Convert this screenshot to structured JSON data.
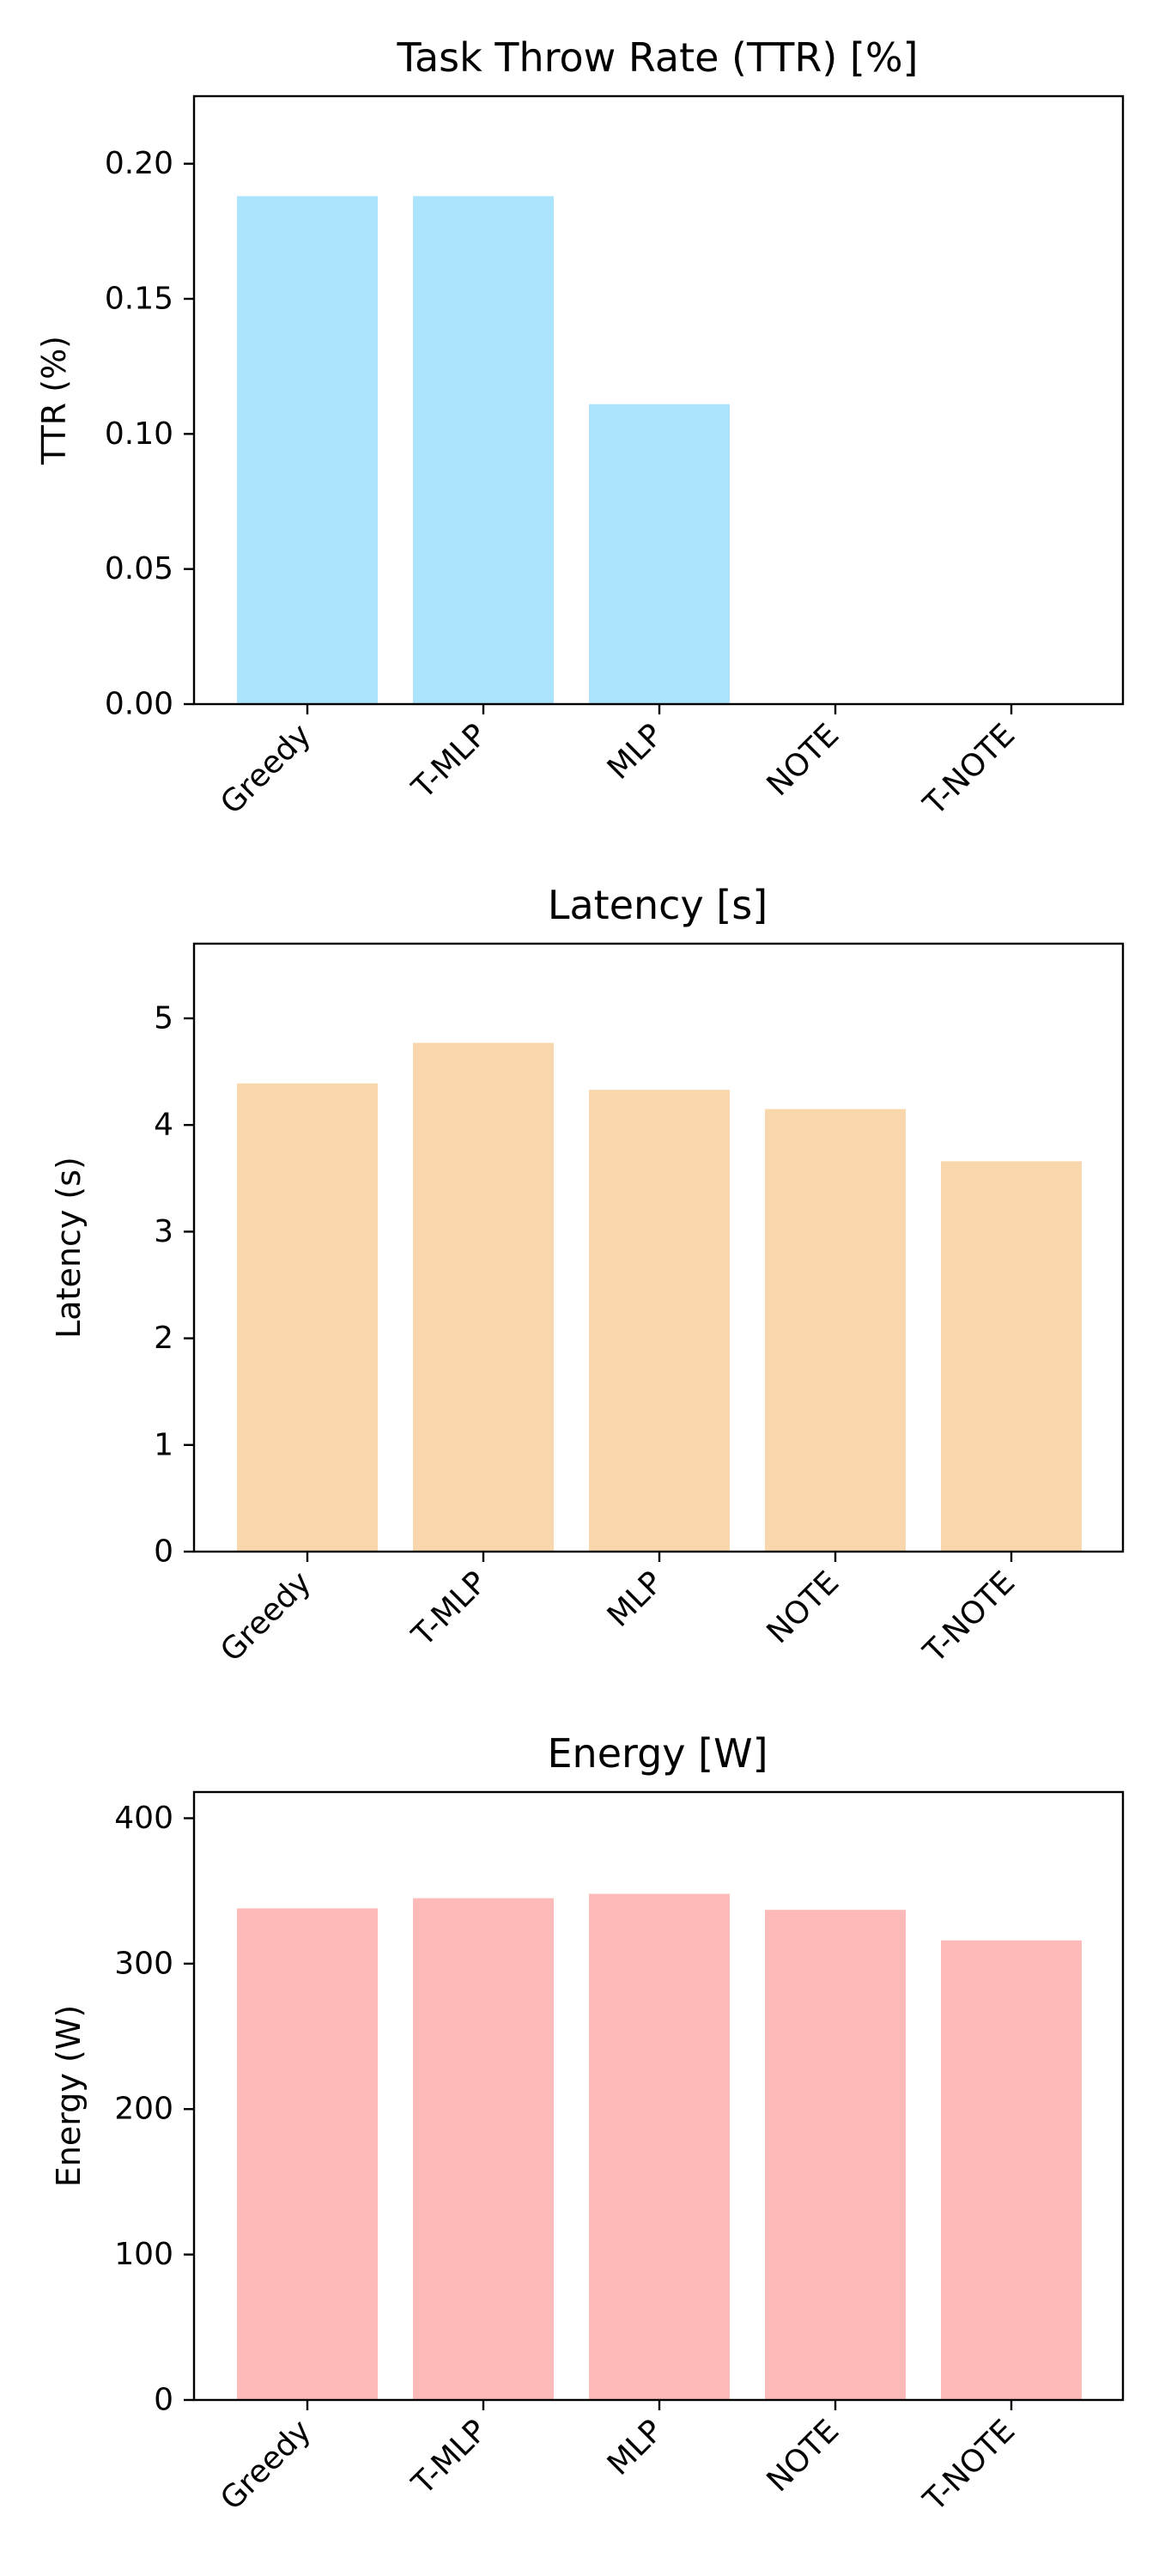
{
  "chart_data": [
    {
      "type": "bar",
      "title": "Task Throw Rate (TTR) [%]",
      "xlabel": "",
      "ylabel": "TTR (%)",
      "categories": [
        "Greedy",
        "T-MLP",
        "MLP",
        "NOTE",
        "T-NOTE"
      ],
      "values": [
        0.188,
        0.188,
        0.111,
        0,
        0
      ],
      "ylim": [
        0,
        0.225
      ],
      "yticks": [
        "0.00",
        "0.05",
        "0.10",
        "0.15",
        "0.20"
      ],
      "color": "#abe4fc",
      "grid": false,
      "legend": "none"
    },
    {
      "type": "bar",
      "title": "Latency [s]",
      "xlabel": "",
      "ylabel": "Latency (s)",
      "categories": [
        "Greedy",
        "T-MLP",
        "MLP",
        "NOTE",
        "T-NOTE"
      ],
      "values": [
        4.39,
        4.77,
        4.33,
        4.15,
        3.66
      ],
      "ylim": [
        0,
        5.7
      ],
      "yticks": [
        "0",
        "1",
        "2",
        "3",
        "4",
        "5"
      ],
      "color": "#f9d7ad",
      "grid": false,
      "legend": "none"
    },
    {
      "type": "bar",
      "title": "Energy [W]",
      "xlabel": "",
      "ylabel": "Energy (W)",
      "categories": [
        "Greedy",
        "T-MLP",
        "MLP",
        "NOTE",
        "T-NOTE"
      ],
      "values": [
        338,
        345,
        348,
        337,
        316
      ],
      "ylim": [
        0,
        418
      ],
      "yticks": [
        "0",
        "100",
        "200",
        "300",
        "400"
      ],
      "color": "#fdbab8",
      "grid": false,
      "legend": "none"
    }
  ]
}
